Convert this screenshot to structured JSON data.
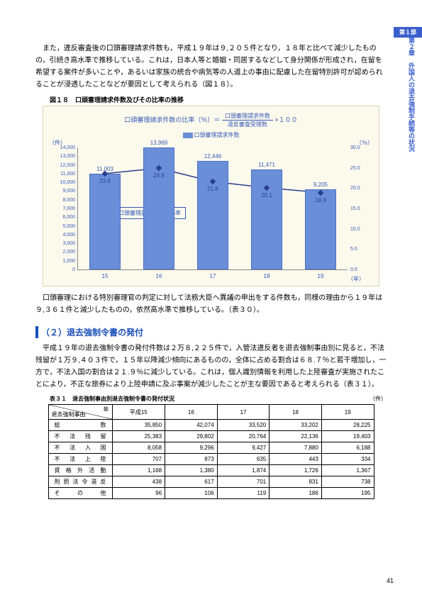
{
  "part_tab": "第１部",
  "side_tab": "第２章　外国人の退去強制手続等の状況",
  "para1": "また，違反審査後の口頭審理請求件数も，平成１９年は９,２０５件となり，１８年と比べて減少したものの，引続き高水準で推移している。これは，日本人等と婚姻・同居するなどして身分関係が形成され，在留を希望する案件が多いことや，あるいは家族の統合や病気等の人道上の事由に配慮した在留特別許可が認められることが浸透したことなどが要因として考えられる（図１８）。",
  "fig_caption": "図１８　口頭審理請求件数及びその比率の推移",
  "formula_left": "口頭審理請求件数の比率（％）＝",
  "formula_top": "口頭審理請求件数",
  "formula_bot": "違反審査受理数",
  "formula_tail": "×１００",
  "legend_bar": "口頭審理請求件数",
  "axis_left": "（件）",
  "axis_right": "（％）",
  "axis_bot": "（年）",
  "callout": "口頭審理請求件数の比率",
  "chart": {
    "y_ticks": [
      "0",
      "1,000",
      "2,000",
      "3,000",
      "4,000",
      "5,000",
      "6,000",
      "7,000",
      "8,000",
      "9,000",
      "10,000",
      "11,000",
      "12,000",
      "13,000",
      "14,000"
    ],
    "y2_ticks": [
      "0.0",
      "5.0",
      "10.0",
      "15.0",
      "20.0",
      "25.0",
      "30.0"
    ],
    "x_labels": [
      "15",
      "16",
      "17",
      "18",
      "19"
    ],
    "bars": [
      11003,
      13969,
      12446,
      11471,
      9205
    ],
    "bar_labels": [
      "11,003",
      "13,969",
      "12,446",
      "11,471",
      "9,205"
    ],
    "line": [
      23.6,
      24.9,
      21.6,
      20.1,
      18.9
    ],
    "line_labels": [
      "23.6",
      "24.9",
      "21.6",
      "20.1",
      "18.9"
    ]
  },
  "para2": "口頭審理における特別審理官の判定に対して法務大臣へ異議の申出をする件数も，同様の理由から１９年は９,３６１件と減少したものの，依然高水準で推移している。（表３０）。",
  "sec_heading": "（２）退去強制令書の発付",
  "para3": "平成１９年の退去強制令書の発付件数は２万８,２２５件で，入管法違反者を退去強制事由別に見ると，不法残留が１万９,４０３件で，１５年以降減少傾向にあるものの，全体に占める割合は６８.７％と若干増加し，一方で，不法入国の割合は２１.９％に減少している。これは，個人識別情報を利用した上陸審査が実施されたことにより，不正な旅券により上陸申請に及ぶ事案が減少したことが主な要因であると考えられる（表３１）。",
  "tbl_caption": "表３１　退去強制事由別退去強制令書の発付状況",
  "tbl_unit": "（件）",
  "corner_year": "年",
  "corner_cat": "退去強制事由",
  "years": [
    "平成15",
    "16",
    "17",
    "18",
    "19"
  ],
  "rows": [
    {
      "label": "総　　　　　　　数",
      "vals": [
        "35,850",
        "42,074",
        "33,520",
        "33,202",
        "28,225"
      ]
    },
    {
      "label": "不　法　残　留",
      "vals": [
        "25,383",
        "29,802",
        "20,764",
        "22,136",
        "19,403"
      ]
    },
    {
      "label": "不　法　入　国",
      "vals": [
        "8,058",
        "9,296",
        "9,427",
        "7,880",
        "6,188"
      ]
    },
    {
      "label": "不　法　上　陸",
      "vals": [
        "707",
        "873",
        "635",
        "443",
        "334"
      ]
    },
    {
      "label": "資　格　外　活　動",
      "vals": [
        "1,168",
        "1,380",
        "1,874",
        "1,726",
        "1,367"
      ]
    },
    {
      "label": "刑 罰 法 令 違 反",
      "vals": [
        "438",
        "617",
        "701",
        "831",
        "738"
      ]
    },
    {
      "label": "そ　　の　　他",
      "vals": [
        "96",
        "106",
        "119",
        "186",
        "195"
      ]
    }
  ],
  "page": "41"
}
